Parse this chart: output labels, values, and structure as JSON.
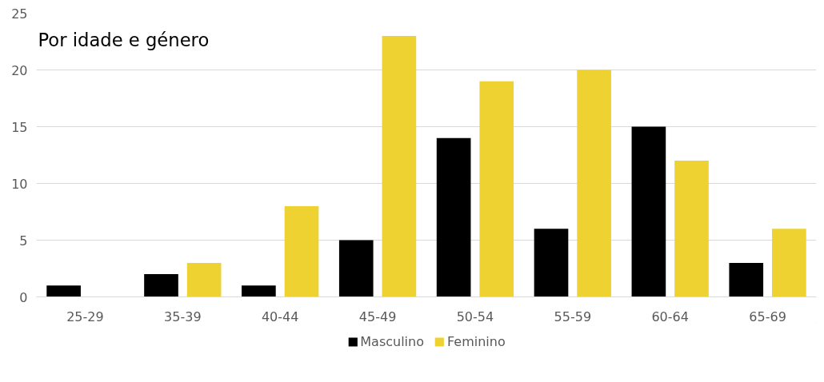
{
  "chart_data": {
    "type": "bar",
    "title": "Por idade e género",
    "categories": [
      "25-29",
      "35-39",
      "40-44",
      "45-49",
      "50-54",
      "55-59",
      "60-64",
      "65-69"
    ],
    "series": [
      {
        "name": "Masculino",
        "color": "#000000",
        "values": [
          1,
          2,
          1,
          5,
          14,
          6,
          15,
          3
        ]
      },
      {
        "name": "Feminino",
        "color": "#edd232",
        "values": [
          0,
          3,
          8,
          23,
          19,
          20,
          12,
          6
        ]
      }
    ],
    "ylim": [
      0,
      25
    ],
    "yticks": [
      0,
      5,
      10,
      15,
      20,
      25
    ],
    "grid": "y",
    "legend": "bottom"
  }
}
